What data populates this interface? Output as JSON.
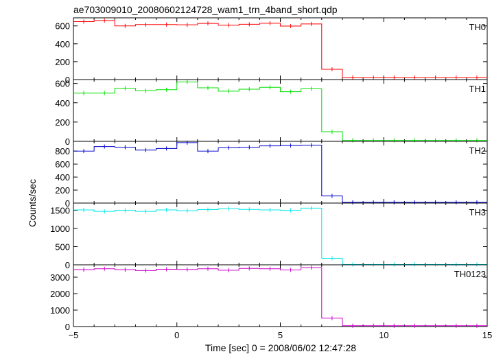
{
  "chart_data": {
    "type": "line",
    "title": "ae703009010_20080602124728_wam1_trn_4band_short.qdp",
    "xlabel": "Time [sec] 0 = 2008/06/02 12:47:28",
    "ylabel": "Counts/sec",
    "xlim": [
      -5,
      15
    ],
    "x_ticks": [
      -5,
      0,
      5,
      10,
      15
    ],
    "x_tick_labels": [
      "−5",
      "0",
      "5",
      "10",
      "15"
    ],
    "bin_edges": [
      -5,
      -4,
      -3,
      -2,
      -1,
      0,
      1,
      2,
      3,
      4,
      5,
      6,
      7,
      8,
      9,
      10,
      11,
      12,
      13,
      14,
      15
    ],
    "series": [
      {
        "name": "TH0",
        "color": "#ff0000",
        "ylim": [
          0,
          690
        ],
        "y_ticks": [
          0,
          200,
          400,
          600
        ],
        "y_tick_labels": [
          "0",
          "200",
          "400",
          "600"
        ],
        "values": [
          648,
          660,
          600,
          615,
          615,
          612,
          628,
          608,
          618,
          630,
          598,
          622,
          115,
          22,
          22,
          22,
          22,
          22,
          22,
          22
        ]
      },
      {
        "name": "TH1",
        "color": "#00e000",
        "ylim": [
          0,
          640
        ],
        "y_ticks": [
          0,
          200,
          400,
          600
        ],
        "y_tick_labels": [
          "0",
          "200",
          "400",
          "600"
        ],
        "values": [
          500,
          500,
          550,
          525,
          535,
          615,
          555,
          520,
          540,
          560,
          515,
          545,
          100,
          10,
          10,
          10,
          10,
          10,
          10,
          10
        ]
      },
      {
        "name": "TH2",
        "color": "#0000cc",
        "ylim": [
          0,
          950
        ],
        "y_ticks": [
          0,
          200,
          400,
          600,
          800
        ],
        "y_tick_labels": [
          "0",
          "200",
          "400",
          "600",
          "800"
        ],
        "values": [
          800,
          870,
          860,
          815,
          840,
          930,
          800,
          850,
          860,
          880,
          885,
          890,
          110,
          10,
          10,
          10,
          10,
          10,
          10,
          10
        ]
      },
      {
        "name": "TH3",
        "color": "#00e8e8",
        "ylim": [
          0,
          1700
        ],
        "y_ticks": [
          0,
          500,
          1000,
          1500
        ],
        "y_tick_labels": [
          "0",
          "500",
          "1000",
          "1500"
        ],
        "values": [
          1510,
          1470,
          1500,
          1470,
          1510,
          1490,
          1520,
          1545,
          1525,
          1510,
          1500,
          1560,
          180,
          10,
          10,
          10,
          10,
          10,
          10,
          10
        ]
      },
      {
        "name": "TH0123",
        "color": "#cc00cc",
        "ylim": [
          0,
          3750
        ],
        "y_ticks": [
          0,
          1000,
          2000,
          3000
        ],
        "y_tick_labels": [
          "0",
          "1000",
          "2000",
          "3000"
        ],
        "values": [
          3460,
          3510,
          3460,
          3400,
          3480,
          3470,
          3510,
          3420,
          3530,
          3510,
          3440,
          3580,
          510,
          50,
          50,
          50,
          50,
          50,
          50,
          50
        ]
      }
    ]
  }
}
